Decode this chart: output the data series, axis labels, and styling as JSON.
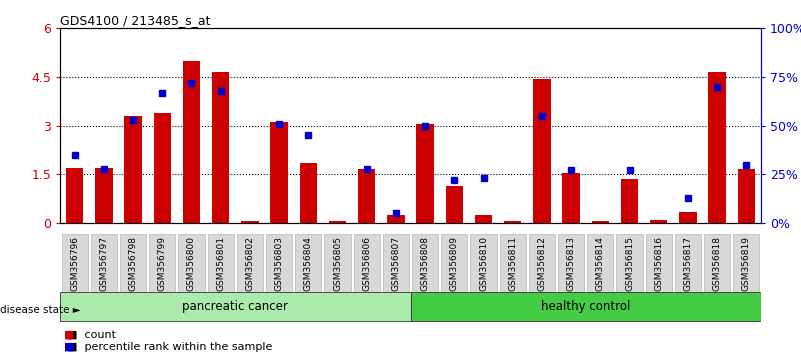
{
  "title": "GDS4100 / 213485_s_at",
  "samples": [
    "GSM356796",
    "GSM356797",
    "GSM356798",
    "GSM356799",
    "GSM356800",
    "GSM356801",
    "GSM356802",
    "GSM356803",
    "GSM356804",
    "GSM356805",
    "GSM356806",
    "GSM356807",
    "GSM356808",
    "GSM356809",
    "GSM356810",
    "GSM356811",
    "GSM356812",
    "GSM356813",
    "GSM356814",
    "GSM356815",
    "GSM356816",
    "GSM356817",
    "GSM356818",
    "GSM356819"
  ],
  "counts": [
    1.7,
    1.7,
    3.3,
    3.4,
    5.0,
    4.65,
    0.05,
    3.1,
    1.85,
    0.05,
    1.65,
    0.25,
    3.05,
    1.15,
    0.25,
    0.05,
    4.45,
    1.55,
    0.05,
    1.35,
    0.1,
    0.35,
    4.65,
    1.65
  ],
  "percentiles": [
    35,
    28,
    53,
    67,
    72,
    68,
    null,
    51,
    45,
    null,
    28,
    5,
    50,
    22,
    23,
    null,
    55,
    27,
    null,
    27,
    null,
    13,
    70,
    30
  ],
  "bar_color": "#cc0000",
  "percentile_color": "#0000cc",
  "ylim_left": [
    0,
    6
  ],
  "ylim_right": [
    0,
    100
  ],
  "yticks_left": [
    0,
    1.5,
    3.0,
    4.5,
    6.0
  ],
  "ytick_labels_left": [
    "0",
    "1.5",
    "3",
    "4.5",
    "6"
  ],
  "yticks_right": [
    0,
    25,
    50,
    75,
    100
  ],
  "ytick_labels_right": [
    "0%",
    "25%",
    "50%",
    "75%",
    "100%"
  ],
  "background_color": "#ffffff",
  "pancreatic_label": "pancreatic cancer",
  "healthy_label": "healthy control",
  "disease_state_label": "disease state",
  "legend_count_label": "count",
  "legend_percentile_label": "percentile rank within the sample",
  "pancreatic_color": "#aaeaaa",
  "healthy_color": "#44cc44",
  "n_pancreatic": 12,
  "n_healthy": 12
}
